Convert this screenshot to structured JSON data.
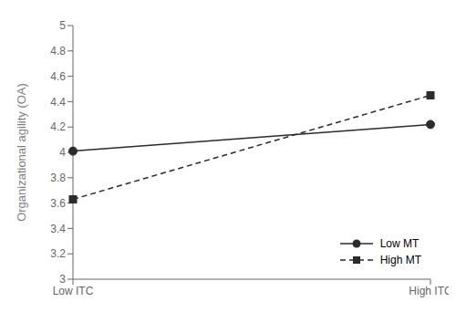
{
  "chart_data": {
    "type": "line",
    "categories": [
      "Low ITC",
      "High ITC"
    ],
    "series": [
      {
        "name": "Low MT",
        "values": [
          4.01,
          4.22
        ],
        "color": "#2b2b2b",
        "line_style": "solid",
        "marker": "circle"
      },
      {
        "name": "High MT",
        "values": [
          3.63,
          4.45
        ],
        "color": "#2b2b2b",
        "line_style": "dashed",
        "marker": "square"
      }
    ],
    "ylabel": "Organizational agility (OA)",
    "ylim": [
      3.0,
      5.0
    ],
    "yticks": [
      3.0,
      3.2,
      3.4,
      3.6,
      3.8,
      4.0,
      4.2,
      4.4,
      4.6,
      4.8,
      5.0
    ],
    "grid": false,
    "legend": "lower right"
  }
}
